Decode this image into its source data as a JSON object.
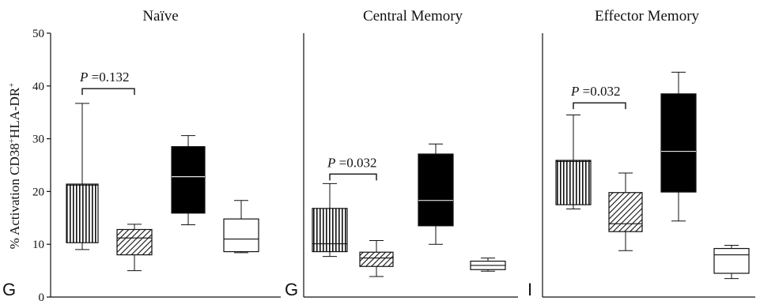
{
  "chart_data": {
    "type": "boxplot",
    "ylabel_html": [
      "% Activation CD38",
      "+",
      "HLA-DR",
      "+"
    ],
    "ylim": [
      0,
      50
    ],
    "yticks": [
      0,
      10,
      20,
      30,
      40,
      50
    ],
    "groups": [
      {
        "pattern": "vertical-stripes",
        "color": "#111111"
      },
      {
        "pattern": "diagonal-hatch",
        "color": "#111111"
      },
      {
        "pattern": "solid-black",
        "color": "#000000"
      },
      {
        "pattern": "white",
        "color": "#ffffff"
      }
    ],
    "panels": [
      {
        "title": "Naïve",
        "panel_letter": "G",
        "annotation": {
          "label": "P",
          "text": " =0.132",
          "from": 0,
          "to": 1,
          "y": 39.5
        },
        "boxes": [
          {
            "min": 9.0,
            "q1": 10.3,
            "median": 21.2,
            "q3": 21.4,
            "max": 36.7
          },
          {
            "min": 5.0,
            "q1": 8.0,
            "median": 11.2,
            "q3": 12.8,
            "max": 13.8
          },
          {
            "min": 13.7,
            "q1": 15.9,
            "median": 22.8,
            "q3": 28.5,
            "max": 30.6
          },
          {
            "min": 8.4,
            "q1": 8.6,
            "median": 11.0,
            "q3": 14.8,
            "max": 18.3
          }
        ]
      },
      {
        "title": "Central Memory",
        "panel_letter": "G",
        "annotation": {
          "label": "P",
          "text": " =0.032",
          "from": 0,
          "to": 1,
          "y": 23.3
        },
        "boxes": [
          {
            "min": 7.7,
            "q1": 8.6,
            "median": 10.1,
            "q3": 16.8,
            "max": 21.5
          },
          {
            "min": 3.9,
            "q1": 5.8,
            "median": 7.4,
            "q3": 8.5,
            "max": 10.7
          },
          {
            "min": 10.0,
            "q1": 13.5,
            "median": 18.3,
            "q3": 27.1,
            "max": 29.0
          },
          {
            "min": 4.9,
            "q1": 5.2,
            "median": 6.0,
            "q3": 6.8,
            "max": 7.4
          }
        ]
      },
      {
        "title": "Effector Memory",
        "panel_letter": "I",
        "annotation": {
          "label": "P",
          "text": " =0.032",
          "from": 0,
          "to": 1,
          "y": 36.8
        },
        "boxes": [
          {
            "min": 16.7,
            "q1": 17.5,
            "median": 25.7,
            "q3": 25.9,
            "max": 34.5
          },
          {
            "min": 8.8,
            "q1": 12.4,
            "median": 13.9,
            "q3": 19.8,
            "max": 23.5
          },
          {
            "min": 14.4,
            "q1": 19.9,
            "median": 27.6,
            "q3": 38.5,
            "max": 42.6
          },
          {
            "min": 3.5,
            "q1": 4.5,
            "median": 8.0,
            "q3": 9.2,
            "max": 9.8
          }
        ]
      }
    ]
  }
}
